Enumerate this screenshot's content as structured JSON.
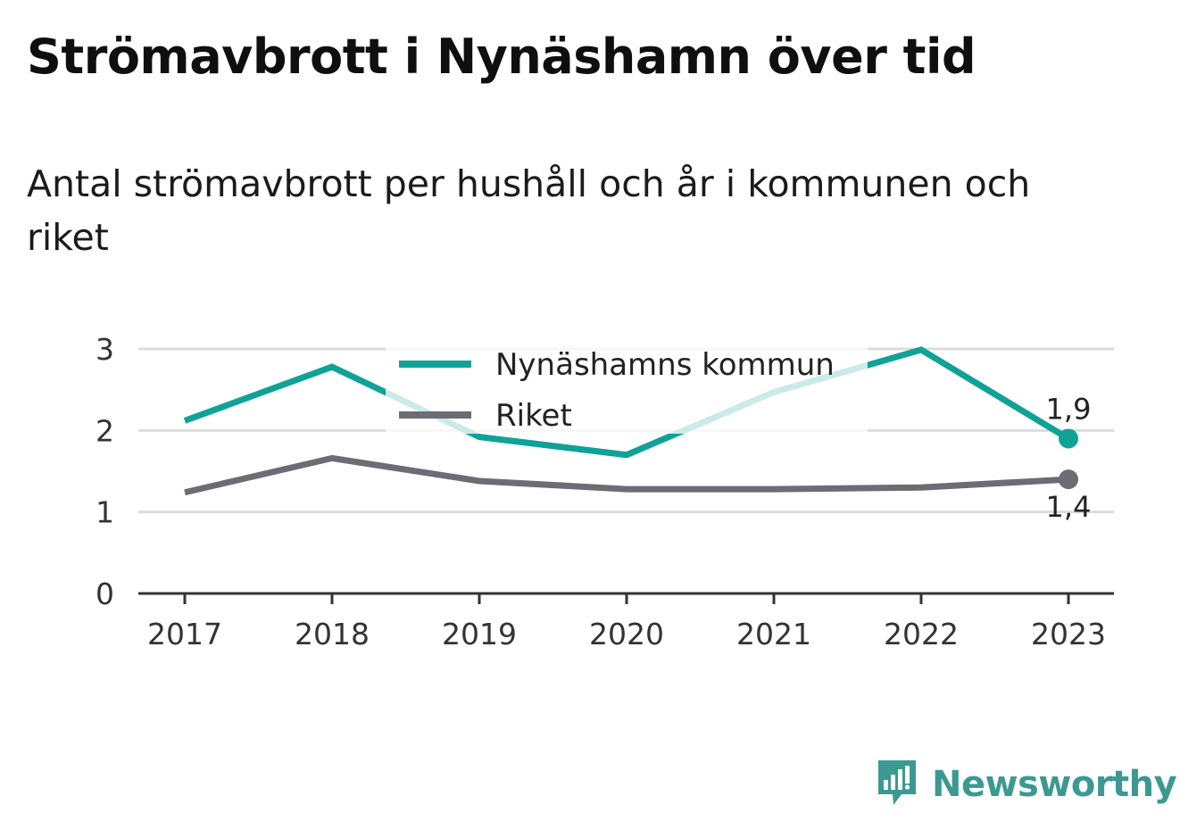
{
  "title": "Strömavbrott i Nynäshamn över tid",
  "subtitle": "Antal strömavbrott per hushåll och år i kommunen och riket",
  "brand": {
    "name": "Newsworthy",
    "icon": "newsworthy-logo-icon",
    "color": "#3a9a92"
  },
  "chart_data": {
    "type": "line",
    "x": [
      "2017",
      "2018",
      "2019",
      "2020",
      "2021",
      "2022",
      "2023"
    ],
    "ylim": [
      0,
      3
    ],
    "yticks": [
      "0",
      "1",
      "2",
      "3"
    ],
    "grid": true,
    "legend_position": "top-center",
    "series": [
      {
        "name": "Nynäshamns kommun",
        "color": "#0fa297",
        "values": [
          2.12,
          2.78,
          1.92,
          1.7,
          2.47,
          2.99,
          1.9
        ],
        "end_label": "1,9"
      },
      {
        "name": "Riket",
        "color": "#6c6c74",
        "values": [
          1.24,
          1.66,
          1.38,
          1.28,
          1.28,
          1.3,
          1.4
        ],
        "end_label": "1,4"
      }
    ]
  }
}
